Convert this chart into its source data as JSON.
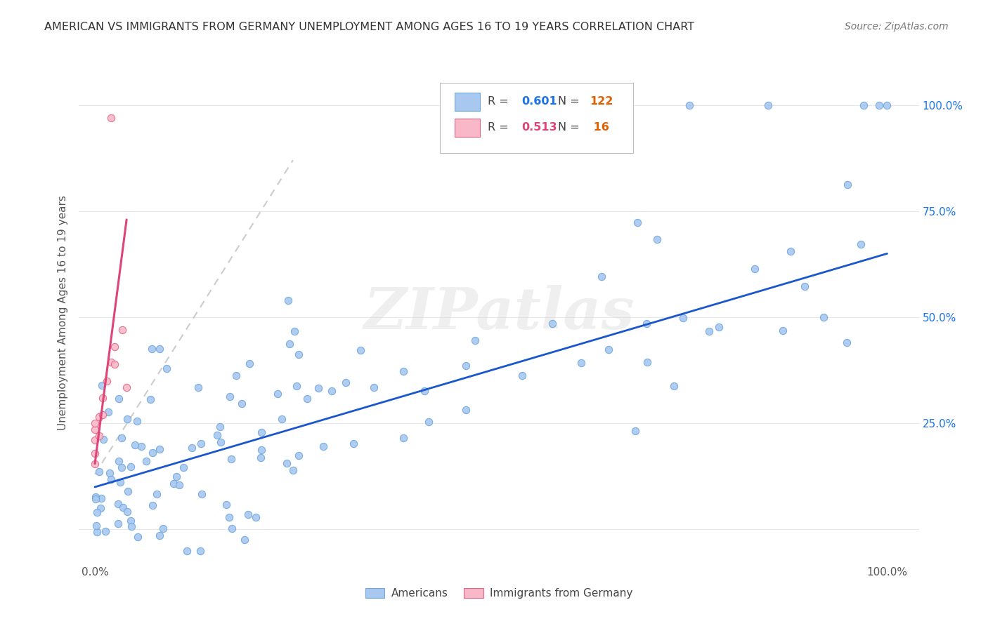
{
  "title": "AMERICAN VS IMMIGRANTS FROM GERMANY UNEMPLOYMENT AMONG AGES 16 TO 19 YEARS CORRELATION CHART",
  "source": "Source: ZipAtlas.com",
  "ylabel": "Unemployment Among Ages 16 to 19 years",
  "watermark": "ZIPatlas",
  "legend_R_am": "0.601",
  "legend_N_am": "122",
  "legend_R_im": "0.513",
  "legend_N_im": "16",
  "americans_color": "#a8c8f0",
  "americans_edge": "#6fa8dc",
  "immigrants_color": "#f9b8c8",
  "immigrants_edge": "#e06888",
  "trend_am_color": "#1a56cc",
  "trend_im_solid_color": "#dd4477",
  "trend_im_dash_color": "#cccccc",
  "background_color": "#ffffff",
  "grid_color": "#e8e8e8",
  "ytick_color": "#1a73e8",
  "legend_R_am_color": "#1a73e8",
  "legend_N_am_color": "#e06000",
  "legend_R_im_color": "#dd4477",
  "legend_N_im_color": "#e06000",
  "title_color": "#333333",
  "source_color": "#777777",
  "ylabel_color": "#555555"
}
